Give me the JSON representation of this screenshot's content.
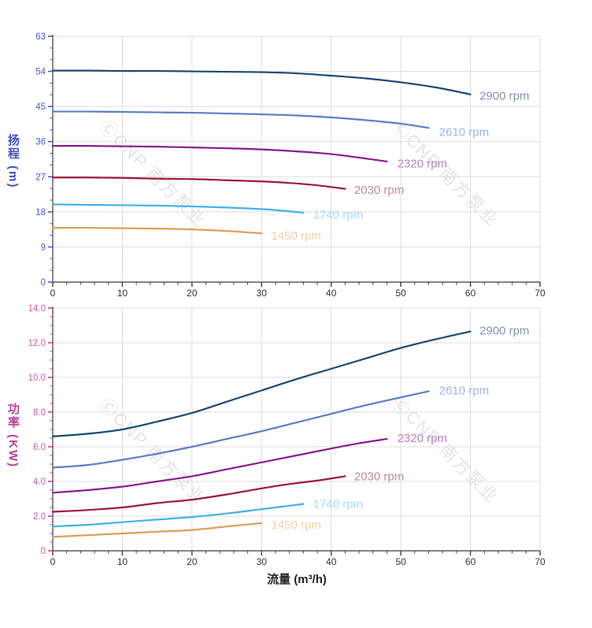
{
  "watermark": {
    "text": "ⒸCNP 南方泵业",
    "color": "#e4e4e4"
  },
  "chart_data": [
    {
      "type": "line",
      "title": "",
      "ylabel": "扬程 (m)",
      "xlabel": "流量 (m³/h)",
      "xlim": [
        0,
        70
      ],
      "ylim": [
        0,
        63
      ],
      "grid": true,
      "legend_position": "inline-right-of-curve-end",
      "x_major_ticks": [
        0,
        10,
        20,
        30,
        40,
        50,
        60,
        70
      ],
      "x_tick_labels": [
        "0",
        "10",
        "20",
        "30",
        "40",
        "50",
        "60",
        "70"
      ],
      "x_minor_step": 2,
      "y_major_ticks": [
        0,
        9,
        18,
        27,
        36,
        45,
        54,
        63
      ],
      "y_tick_labels": [
        "0",
        "9",
        "18",
        "27",
        "36",
        "45",
        "54",
        "63"
      ],
      "y_minor_step": 3,
      "axis_text_color": "#4a5ad1",
      "tick_color": "#4a5ad1",
      "series": [
        {
          "name": "2900 rpm",
          "color": "#1b4a74",
          "label_color": "#7f96ae",
          "label_at": [
            61.3,
            47.8
          ],
          "x": [
            0,
            5,
            10,
            15,
            20,
            25,
            30,
            35,
            40,
            45,
            50,
            55,
            60
          ],
          "y": [
            54.2,
            54.2,
            54.1,
            54.1,
            54.0,
            53.9,
            53.8,
            53.5,
            52.9,
            52.2,
            51.2,
            49.9,
            48.1
          ]
        },
        {
          "name": "2610 rpm",
          "color": "#5b7ec8",
          "label_color": "#9fb6e2",
          "label_at": [
            55.5,
            38.5
          ],
          "x": [
            0,
            5,
            10,
            15,
            20,
            25,
            30,
            35,
            40,
            45,
            50,
            54
          ],
          "y": [
            43.7,
            43.7,
            43.6,
            43.5,
            43.4,
            43.2,
            43.0,
            42.7,
            42.2,
            41.5,
            40.6,
            39.5
          ]
        },
        {
          "name": "2320 rpm",
          "color": "#8d1a8d",
          "label_color": "#bd7fc6",
          "label_at": [
            49.5,
            30.4
          ],
          "x": [
            0,
            5,
            10,
            15,
            20,
            25,
            30,
            35,
            40,
            44,
            48
          ],
          "y": [
            34.9,
            34.9,
            34.8,
            34.7,
            34.5,
            34.3,
            34.0,
            33.5,
            32.8,
            31.9,
            30.9
          ]
        },
        {
          "name": "2030 rpm",
          "color": "#9e1a35",
          "label_color": "#c38a9b",
          "label_at": [
            43.3,
            23.6
          ],
          "x": [
            0,
            5,
            10,
            15,
            20,
            25,
            30,
            34,
            38,
            42
          ],
          "y": [
            26.8,
            26.8,
            26.7,
            26.5,
            26.4,
            26.1,
            25.8,
            25.4,
            24.8,
            23.9
          ]
        },
        {
          "name": "1740 rpm",
          "color": "#3fb3e8",
          "label_color": "#a4d8f3",
          "label_at": [
            37.4,
            17.3
          ],
          "x": [
            0,
            5,
            10,
            15,
            20,
            25,
            30,
            33,
            36
          ],
          "y": [
            19.9,
            19.8,
            19.7,
            19.6,
            19.4,
            19.1,
            18.7,
            18.3,
            17.8
          ]
        },
        {
          "name": "1450 rpm",
          "color": "#d9a05c",
          "label_color": "#ebd0a9",
          "label_at": [
            31.4,
            11.9
          ],
          "x": [
            0,
            5,
            10,
            15,
            20,
            25,
            30
          ],
          "y": [
            13.9,
            13.9,
            13.8,
            13.7,
            13.5,
            13.1,
            12.5
          ]
        }
      ]
    },
    {
      "type": "line",
      "title": "",
      "ylabel": "功率 (KW)",
      "xlabel": "流量 (m³/h)",
      "xlim": [
        0,
        70
      ],
      "ylim": [
        0,
        14
      ],
      "grid": true,
      "legend_position": "inline-right-of-curve-end",
      "x_major_ticks": [
        0,
        10,
        20,
        30,
        40,
        50,
        60,
        70
      ],
      "x_tick_labels": [
        "0",
        "10",
        "20",
        "30",
        "40",
        "50",
        "60",
        "70"
      ],
      "x_minor_step": 2,
      "y_major_ticks": [
        0,
        2,
        4,
        6,
        8,
        10,
        12,
        14
      ],
      "y_tick_labels": [
        "0",
        "2.0",
        "4.0",
        "6.0",
        "8.0",
        "10.0",
        "12.0",
        "14.0"
      ],
      "y_minor_step": 0.5,
      "axis_text_color": "#ce5aa5",
      "tick_color": "#e23aa0",
      "series": [
        {
          "name": "2900 rpm",
          "color": "#1b4a74",
          "label_color": "#7f96ae",
          "label_at": [
            61.3,
            12.7
          ],
          "x": [
            0,
            5,
            10,
            15,
            20,
            25,
            30,
            35,
            40,
            45,
            50,
            55,
            60
          ],
          "y": [
            6.6,
            6.75,
            7.0,
            7.45,
            7.95,
            8.6,
            9.25,
            9.9,
            10.5,
            11.1,
            11.7,
            12.2,
            12.65
          ]
        },
        {
          "name": "2610 rpm",
          "color": "#5b7ec8",
          "label_color": "#9fb6e2",
          "label_at": [
            55.5,
            9.25
          ],
          "x": [
            0,
            5,
            10,
            15,
            20,
            25,
            30,
            35,
            40,
            45,
            50,
            54
          ],
          "y": [
            4.8,
            4.95,
            5.25,
            5.6,
            6.0,
            6.45,
            6.9,
            7.4,
            7.9,
            8.4,
            8.85,
            9.2
          ]
        },
        {
          "name": "2320 rpm",
          "color": "#8d1a8d",
          "label_color": "#bd7fc6",
          "label_at": [
            49.5,
            6.5
          ],
          "x": [
            0,
            5,
            10,
            15,
            20,
            25,
            30,
            35,
            40,
            44,
            48
          ],
          "y": [
            3.35,
            3.5,
            3.7,
            4.0,
            4.3,
            4.7,
            5.1,
            5.5,
            5.9,
            6.2,
            6.45
          ]
        },
        {
          "name": "2030 rpm",
          "color": "#9e1a35",
          "label_color": "#c38a9b",
          "label_at": [
            43.3,
            4.3
          ],
          "x": [
            0,
            5,
            10,
            15,
            20,
            25,
            30,
            34,
            38,
            42
          ],
          "y": [
            2.25,
            2.35,
            2.5,
            2.75,
            2.95,
            3.25,
            3.6,
            3.85,
            4.05,
            4.3
          ]
        },
        {
          "name": "1740 rpm",
          "color": "#3fb3e8",
          "label_color": "#a4d8f3",
          "label_at": [
            37.4,
            2.7
          ],
          "x": [
            0,
            5,
            10,
            15,
            20,
            25,
            30,
            33,
            36
          ],
          "y": [
            1.4,
            1.5,
            1.65,
            1.8,
            1.95,
            2.15,
            2.4,
            2.55,
            2.7
          ]
        },
        {
          "name": "1450 rpm",
          "color": "#d9a05c",
          "label_color": "#ebd0a9",
          "label_at": [
            31.4,
            1.5
          ],
          "x": [
            0,
            5,
            10,
            15,
            20,
            25,
            30
          ],
          "y": [
            0.8,
            0.9,
            1.0,
            1.1,
            1.2,
            1.4,
            1.6
          ]
        }
      ]
    }
  ]
}
